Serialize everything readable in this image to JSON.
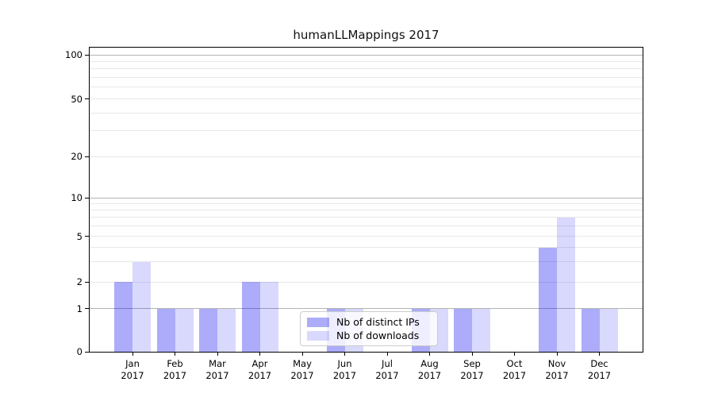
{
  "title": "humanLLMappings 2017",
  "legend": {
    "items": [
      "Nb of distinct IPs",
      "Nb of downloads"
    ]
  },
  "colors": {
    "bar_ips": "rgba(16,16,240,0.35)",
    "bar_downloads": "rgba(16,16,240,0.16)",
    "grid_major": "#b3b3b3",
    "grid_minor": "#e8e8e8",
    "spine": "#000000",
    "legend_border": "#cccccc"
  },
  "x_axis": {
    "months": [
      "Jan",
      "Feb",
      "Mar",
      "Apr",
      "May",
      "Jun",
      "Jul",
      "Aug",
      "Sep",
      "Oct",
      "Nov",
      "Dec"
    ],
    "year": "2017"
  },
  "chart_data": {
    "type": "bar",
    "title": "humanLLMappings 2017",
    "categories": [
      "Jan 2017",
      "Feb 2017",
      "Mar 2017",
      "Apr 2017",
      "May 2017",
      "Jun 2017",
      "Jul 2017",
      "Aug 2017",
      "Sep 2017",
      "Oct 2017",
      "Nov 2017",
      "Dec 2017"
    ],
    "series": [
      {
        "name": "Nb of distinct IPs",
        "values": [
          2,
          1,
          1,
          2,
          0,
          1,
          0,
          1,
          1,
          0,
          4,
          1
        ]
      },
      {
        "name": "Nb of downloads",
        "values": [
          3,
          1,
          1,
          2,
          0,
          1,
          0,
          1,
          1,
          0,
          7,
          1
        ]
      }
    ],
    "yscale": "log-like with linear 0-1 segment",
    "yticks": [
      0,
      1,
      2,
      5,
      10,
      20,
      50,
      100
    ],
    "major_gridlines": [
      1,
      10,
      100
    ],
    "minor_gridlines": [
      2,
      3,
      4,
      5,
      6,
      7,
      8,
      9,
      20,
      30,
      40,
      50,
      60,
      70,
      80,
      90
    ],
    "ylim": [
      0,
      112
    ],
    "xlabel": "",
    "ylabel": "",
    "grid": true,
    "legend_position": "inside lower-center"
  }
}
